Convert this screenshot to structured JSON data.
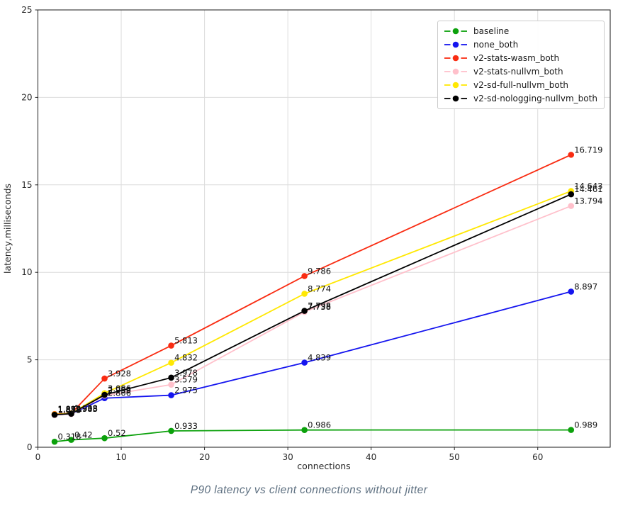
{
  "figure": {
    "caption": "P90 latency vs client connections without jitter",
    "xlabel": "connections",
    "ylabel": "latency,milliseconds"
  },
  "chart_data": {
    "type": "line",
    "title": "P90 latency vs client connections without jitter",
    "xlabel": "connections",
    "ylabel": "latency,milliseconds",
    "grid": true,
    "legend_position": "upper right",
    "x": [
      2,
      4,
      8,
      16,
      32,
      64
    ],
    "x_ticks": [
      0,
      10,
      20,
      30,
      40,
      50,
      60
    ],
    "y_ticks": [
      0,
      5,
      10,
      15,
      20,
      25
    ],
    "xlim": [
      0,
      68.7
    ],
    "ylim": [
      0,
      25
    ],
    "series": [
      {
        "name": "baseline",
        "color": "#0ca10c",
        "values": [
          0.318,
          0.42,
          0.52,
          0.933,
          0.986,
          0.989
        ],
        "point_labels": [
          "0.318",
          "0.42",
          "0.52",
          "0.933",
          "0.986",
          "0.989"
        ]
      },
      {
        "name": "none_both",
        "color": "#1515ef",
        "values": [
          1.843,
          1.905,
          2.806,
          2.975,
          4.839,
          8.897
        ],
        "point_labels": [
          "1.843",
          "1.905",
          "2.806",
          "2.975",
          "4.839",
          "8.897"
        ]
      },
      {
        "name": "v2-stats-wasm_both",
        "color": "#f92c12",
        "values": [
          1.896,
          1.938,
          3.928,
          5.813,
          9.786,
          16.719
        ],
        "point_labels": [
          "1.896",
          "1.938",
          "3.928",
          "5.813",
          "9.786",
          "16.719"
        ]
      },
      {
        "name": "v2-stats-nullvm_both",
        "color": "#ffc0cb",
        "values": [
          1.838,
          1.903,
          2.953,
          3.579,
          7.738,
          13.794
        ],
        "point_labels": [
          "1.838",
          "1.903",
          "2.953",
          "3.579",
          "7.738",
          "13.794"
        ]
      },
      {
        "name": "v2-sd-full-nullvm_both",
        "color": "#ffe802",
        "values": [
          1.878,
          1.933,
          3.086,
          4.832,
          8.774,
          14.643
        ],
        "point_labels": [
          "1.878",
          "1.933",
          "3.086",
          "4.832",
          "8.774",
          "14.643"
        ]
      },
      {
        "name": "v2-sd-nologging-nullvm_both",
        "color": "#000000",
        "values": [
          1.859,
          1.918,
          2.996,
          3.978,
          7.798,
          14.461
        ],
        "point_labels": [
          "1.859",
          "1.918",
          "2.996",
          "3.978",
          "7.798",
          "14.461"
        ]
      }
    ]
  }
}
